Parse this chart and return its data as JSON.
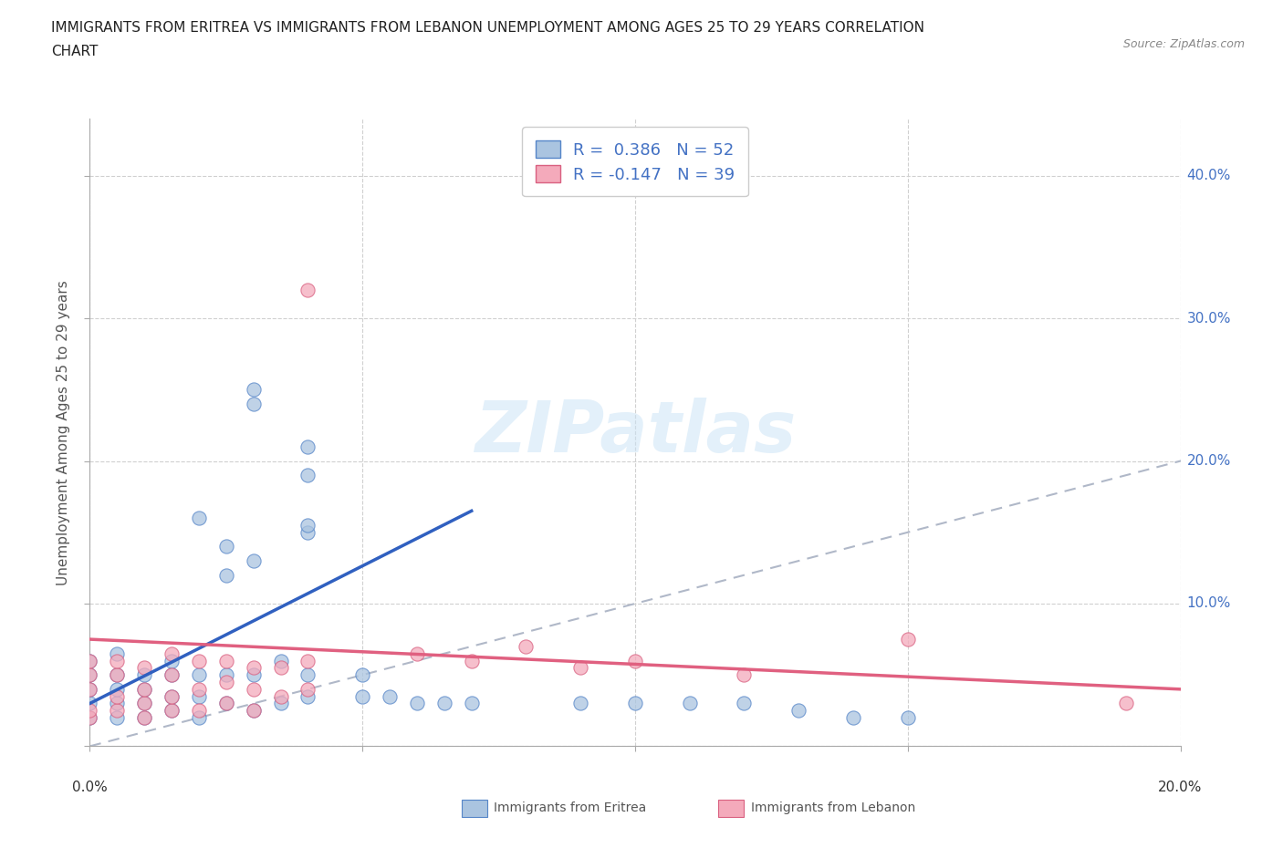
{
  "title_line1": "IMMIGRANTS FROM ERITREA VS IMMIGRANTS FROM LEBANON UNEMPLOYMENT AMONG AGES 25 TO 29 YEARS CORRELATION",
  "title_line2": "CHART",
  "source": "Source: ZipAtlas.com",
  "ylabel": "Unemployment Among Ages 25 to 29 years",
  "xlim": [
    0.0,
    0.2
  ],
  "ylim": [
    0.0,
    0.44
  ],
  "eritrea_color": "#aac4e0",
  "eritrea_edge": "#5585c8",
  "lebanon_color": "#f4aabb",
  "lebanon_edge": "#d96080",
  "eritrea_line_color": "#3060c0",
  "lebanon_line_color": "#e06080",
  "diagonal_color": "#b0b8c8",
  "R_eritrea": 0.386,
  "N_eritrea": 52,
  "R_lebanon": -0.147,
  "N_lebanon": 39,
  "eritrea_scatter": [
    [
      0.0,
      0.02
    ],
    [
      0.0,
      0.03
    ],
    [
      0.0,
      0.04
    ],
    [
      0.0,
      0.05
    ],
    [
      0.0,
      0.06
    ],
    [
      0.005,
      0.02
    ],
    [
      0.005,
      0.03
    ],
    [
      0.005,
      0.04
    ],
    [
      0.005,
      0.05
    ],
    [
      0.005,
      0.065
    ],
    [
      0.01,
      0.02
    ],
    [
      0.01,
      0.03
    ],
    [
      0.01,
      0.04
    ],
    [
      0.01,
      0.05
    ],
    [
      0.015,
      0.025
    ],
    [
      0.015,
      0.035
    ],
    [
      0.015,
      0.05
    ],
    [
      0.015,
      0.06
    ],
    [
      0.02,
      0.02
    ],
    [
      0.02,
      0.035
    ],
    [
      0.02,
      0.05
    ],
    [
      0.025,
      0.03
    ],
    [
      0.025,
      0.05
    ],
    [
      0.03,
      0.025
    ],
    [
      0.03,
      0.05
    ],
    [
      0.03,
      0.13
    ],
    [
      0.035,
      0.03
    ],
    [
      0.035,
      0.06
    ],
    [
      0.04,
      0.035
    ],
    [
      0.04,
      0.05
    ],
    [
      0.05,
      0.035
    ],
    [
      0.05,
      0.05
    ],
    [
      0.055,
      0.035
    ],
    [
      0.06,
      0.03
    ],
    [
      0.065,
      0.03
    ],
    [
      0.07,
      0.03
    ],
    [
      0.04,
      0.15
    ],
    [
      0.04,
      0.19
    ],
    [
      0.04,
      0.21
    ],
    [
      0.04,
      0.155
    ],
    [
      0.03,
      0.25
    ],
    [
      0.03,
      0.24
    ],
    [
      0.02,
      0.16
    ],
    [
      0.025,
      0.14
    ],
    [
      0.025,
      0.12
    ],
    [
      0.09,
      0.03
    ],
    [
      0.1,
      0.03
    ],
    [
      0.11,
      0.03
    ],
    [
      0.12,
      0.03
    ],
    [
      0.13,
      0.025
    ],
    [
      0.14,
      0.02
    ],
    [
      0.15,
      0.02
    ]
  ],
  "lebanon_scatter": [
    [
      0.0,
      0.02
    ],
    [
      0.0,
      0.025
    ],
    [
      0.0,
      0.04
    ],
    [
      0.0,
      0.05
    ],
    [
      0.0,
      0.06
    ],
    [
      0.005,
      0.025
    ],
    [
      0.005,
      0.035
    ],
    [
      0.005,
      0.05
    ],
    [
      0.005,
      0.06
    ],
    [
      0.01,
      0.02
    ],
    [
      0.01,
      0.03
    ],
    [
      0.01,
      0.04
    ],
    [
      0.01,
      0.055
    ],
    [
      0.015,
      0.025
    ],
    [
      0.015,
      0.035
    ],
    [
      0.015,
      0.05
    ],
    [
      0.015,
      0.065
    ],
    [
      0.02,
      0.025
    ],
    [
      0.02,
      0.04
    ],
    [
      0.02,
      0.06
    ],
    [
      0.025,
      0.03
    ],
    [
      0.025,
      0.045
    ],
    [
      0.025,
      0.06
    ],
    [
      0.03,
      0.025
    ],
    [
      0.03,
      0.04
    ],
    [
      0.03,
      0.055
    ],
    [
      0.035,
      0.035
    ],
    [
      0.035,
      0.055
    ],
    [
      0.04,
      0.04
    ],
    [
      0.04,
      0.06
    ],
    [
      0.04,
      0.32
    ],
    [
      0.06,
      0.065
    ],
    [
      0.07,
      0.06
    ],
    [
      0.08,
      0.07
    ],
    [
      0.09,
      0.055
    ],
    [
      0.1,
      0.06
    ],
    [
      0.12,
      0.05
    ],
    [
      0.15,
      0.075
    ],
    [
      0.19,
      0.03
    ]
  ],
  "eritrea_regline": [
    [
      0.0,
      0.03
    ],
    [
      0.07,
      0.165
    ]
  ],
  "lebanon_regline": [
    [
      0.0,
      0.075
    ],
    [
      0.2,
      0.04
    ]
  ]
}
